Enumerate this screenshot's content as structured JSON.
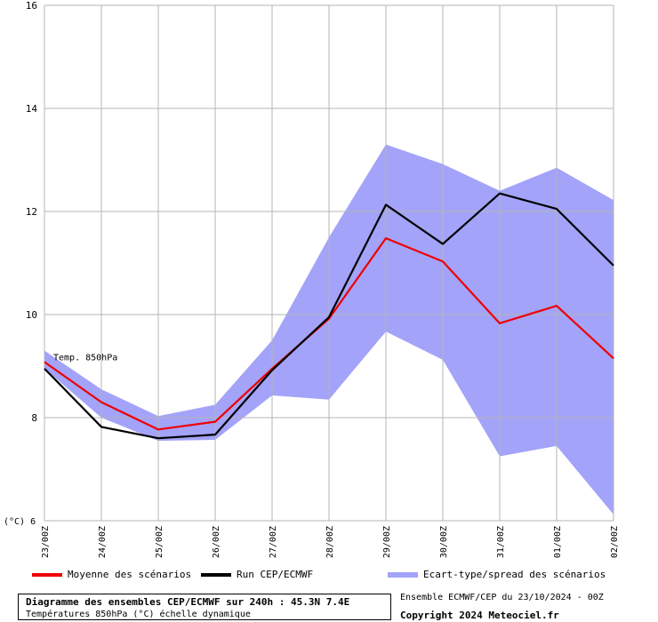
{
  "chart_data": {
    "type": "line",
    "unit_label": "(°C)",
    "inline_label": "Temp. 850hPa",
    "categories": [
      "23/00Z",
      "24/00Z",
      "25/00Z",
      "26/00Z",
      "27/00Z",
      "28/00Z",
      "29/00Z",
      "30/00Z",
      "31/00Z",
      "01/00Z",
      "02/00Z"
    ],
    "ylim": [
      6,
      16
    ],
    "yticks": [
      6,
      8,
      10,
      12,
      14,
      16
    ],
    "grid": true,
    "series": [
      {
        "name": "Moyenne des scénarios",
        "color": "#ee0000",
        "values": [
          9.08,
          8.3,
          7.77,
          7.92,
          8.95,
          9.92,
          11.48,
          11.03,
          9.83,
          10.17,
          9.15
        ]
      },
      {
        "name": "Run CEP/ECMWF",
        "color": "#000000",
        "values": [
          8.95,
          7.82,
          7.6,
          7.67,
          8.92,
          9.95,
          12.13,
          11.37,
          12.35,
          12.05,
          10.95
        ]
      }
    ],
    "band": {
      "name": "Ecart-type/spread des scénarios",
      "color": "#a3a3fa",
      "upper": [
        9.3,
        8.55,
        8.03,
        8.25,
        9.5,
        11.5,
        13.3,
        12.92,
        12.4,
        12.85,
        12.22
      ],
      "lower": [
        8.95,
        8.0,
        7.55,
        7.57,
        8.43,
        8.35,
        9.67,
        9.12,
        7.25,
        7.45,
        6.12
      ]
    }
  },
  "legend": {
    "mean": "Moyenne des scénarios",
    "run": "Run CEP/ECMWF",
    "spread": "Ecart-type/spread des scénarios"
  },
  "footer": {
    "title": "Diagramme des ensembles CEP/ECMWF sur 240h : 45.3N 7.4E",
    "subtitle": "Températures 850hPa (°C) échelle dynamique",
    "info": "Ensemble ECMWF/CEP du 23/10/2024 - 00Z",
    "copyright": "Copyright 2024 Meteociel.fr"
  }
}
